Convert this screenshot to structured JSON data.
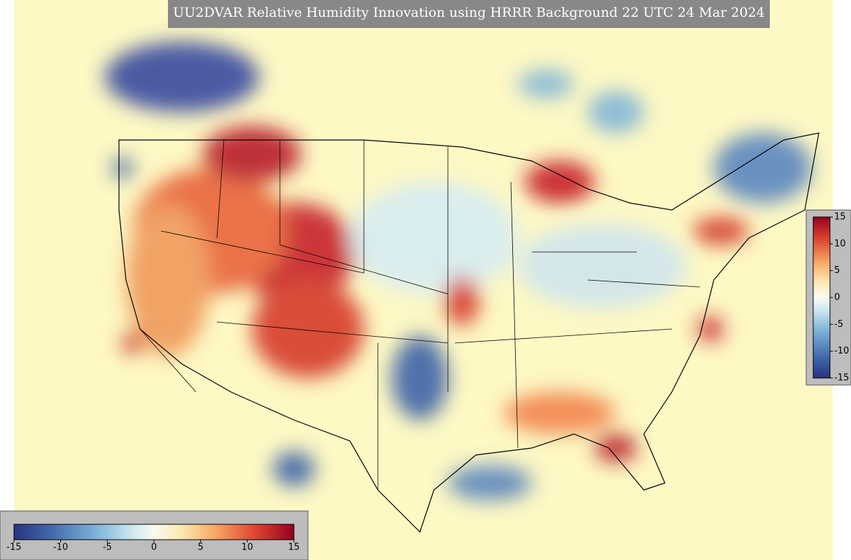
{
  "title": "UU2DVAR Relative Humidity Innovation using HRRR Background 22 UTC 24 Mar 2024",
  "colorbar_vertical": {
    "range": [
      -15,
      15
    ],
    "ticks": [
      -15,
      -10,
      -5,
      0,
      5,
      10,
      15
    ]
  },
  "colorbar_horizontal": {
    "range": [
      -15,
      15
    ],
    "ticks": [
      -15,
      -10,
      -5,
      0,
      5,
      10,
      15
    ]
  }
}
